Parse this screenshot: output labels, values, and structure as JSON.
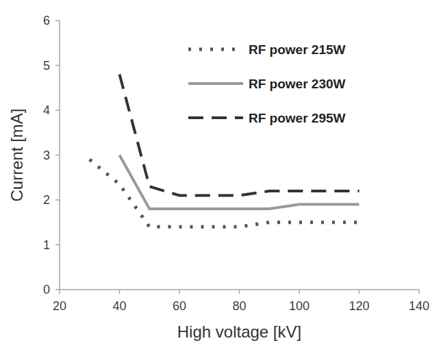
{
  "chart_data": {
    "type": "line",
    "x_label": "High voltage [kV]",
    "y_label": "Current [mA]",
    "x": [
      30,
      40,
      50,
      60,
      70,
      80,
      90,
      100,
      110,
      120
    ],
    "series": [
      {
        "name": "RF power 215W",
        "color": "#555555",
        "line_style": "dotted",
        "values": [
          2.9,
          2.35,
          1.4,
          1.4,
          1.4,
          1.4,
          1.5,
          1.5,
          1.5,
          1.5
        ]
      },
      {
        "name": "RF power 230W",
        "color": "#999999",
        "line_style": "solid",
        "values": [
          null,
          3.0,
          1.8,
          1.8,
          1.8,
          1.8,
          1.8,
          1.9,
          1.9,
          1.9
        ]
      },
      {
        "name": "RF power 295W",
        "color": "#333333",
        "line_style": "dashed",
        "values": [
          null,
          4.8,
          2.3,
          2.1,
          2.1,
          2.1,
          2.2,
          2.2,
          2.2,
          2.2
        ]
      }
    ],
    "xlim": [
      20,
      140
    ],
    "xticks": [
      20,
      40,
      60,
      80,
      100,
      120,
      140
    ],
    "ylim": [
      0,
      6
    ],
    "yticks": [
      0,
      1,
      2,
      3,
      4,
      5,
      6
    ],
    "grid": false,
    "legend": "upper right"
  }
}
